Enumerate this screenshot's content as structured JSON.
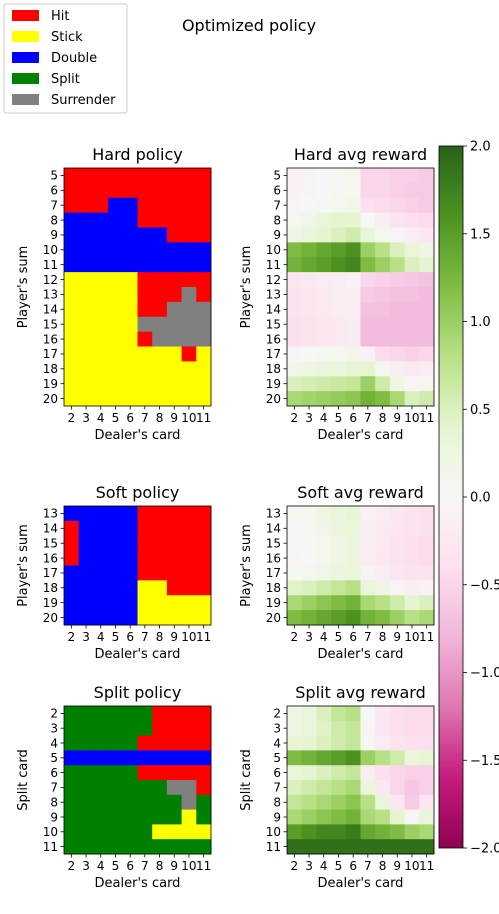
{
  "page": {
    "title": "Optimized policy"
  },
  "legend": {
    "position": "top-left",
    "entries": [
      {
        "label": "Hit",
        "color": "#ff0000"
      },
      {
        "label": "Stick",
        "color": "#ffff00"
      },
      {
        "label": "Double",
        "color": "#0000ff"
      },
      {
        "label": "Split",
        "color": "#008000"
      },
      {
        "label": "Surrender",
        "color": "#808080"
      }
    ]
  },
  "chart_data": [
    {
      "type": "heatmap",
      "name": "hard-policy",
      "title": "Hard policy",
      "xlabel": "Dealer's card",
      "ylabel": "Player's sum",
      "x_ticks": [
        "2",
        "3",
        "4",
        "5",
        "6",
        "7",
        "8",
        "9",
        "10",
        "11"
      ],
      "y_ticks": [
        "5",
        "6",
        "7",
        "8",
        "9",
        "10",
        "11",
        "12",
        "13",
        "14",
        "15",
        "16",
        "17",
        "18",
        "19",
        "20"
      ],
      "value_kind": "action",
      "action_colors": {
        "H": "#ff0000",
        "S": "#ffff00",
        "D": "#0000ff",
        "P": "#008000",
        "R": "#808080"
      },
      "action_names": {
        "H": "Hit",
        "S": "Stick",
        "D": "Double",
        "P": "Split",
        "R": "Surrender"
      },
      "rows": [
        [
          "H",
          "H",
          "H",
          "H",
          "H",
          "H",
          "H",
          "H",
          "H",
          "H"
        ],
        [
          "H",
          "H",
          "H",
          "H",
          "H",
          "H",
          "H",
          "H",
          "H",
          "H"
        ],
        [
          "H",
          "H",
          "H",
          "D",
          "D",
          "H",
          "H",
          "H",
          "H",
          "H"
        ],
        [
          "D",
          "D",
          "D",
          "D",
          "D",
          "H",
          "H",
          "H",
          "H",
          "H"
        ],
        [
          "D",
          "D",
          "D",
          "D",
          "D",
          "D",
          "D",
          "H",
          "H",
          "H"
        ],
        [
          "D",
          "D",
          "D",
          "D",
          "D",
          "D",
          "D",
          "D",
          "D",
          "D"
        ],
        [
          "D",
          "D",
          "D",
          "D",
          "D",
          "D",
          "D",
          "D",
          "D",
          "D"
        ],
        [
          "S",
          "S",
          "S",
          "S",
          "S",
          "H",
          "H",
          "H",
          "H",
          "H"
        ],
        [
          "S",
          "S",
          "S",
          "S",
          "S",
          "H",
          "H",
          "H",
          "R",
          "H"
        ],
        [
          "S",
          "S",
          "S",
          "S",
          "S",
          "H",
          "H",
          "R",
          "R",
          "R"
        ],
        [
          "S",
          "S",
          "S",
          "S",
          "S",
          "R",
          "R",
          "R",
          "R",
          "R"
        ],
        [
          "S",
          "S",
          "S",
          "S",
          "S",
          "H",
          "R",
          "R",
          "R",
          "R"
        ],
        [
          "S",
          "S",
          "S",
          "S",
          "S",
          "S",
          "S",
          "S",
          "H",
          "S"
        ],
        [
          "S",
          "S",
          "S",
          "S",
          "S",
          "S",
          "S",
          "S",
          "S",
          "S"
        ],
        [
          "S",
          "S",
          "S",
          "S",
          "S",
          "S",
          "S",
          "S",
          "S",
          "S"
        ],
        [
          "S",
          "S",
          "S",
          "S",
          "S",
          "S",
          "S",
          "S",
          "S",
          "S"
        ]
      ]
    },
    {
      "type": "heatmap",
      "name": "hard-avg-reward",
      "title": "Hard avg reward",
      "xlabel": "Dealer's card",
      "ylabel": "Player's sum",
      "x_ticks": [
        "2",
        "3",
        "4",
        "5",
        "6",
        "7",
        "8",
        "9",
        "10",
        "11"
      ],
      "y_ticks": [
        "5",
        "6",
        "7",
        "8",
        "9",
        "10",
        "11",
        "12",
        "13",
        "14",
        "15",
        "16",
        "17",
        "18",
        "19",
        "20"
      ],
      "value_kind": "reward",
      "vmin": -2.0,
      "vmax": 2.0,
      "rows": [
        [
          -0.1,
          -0.05,
          0.0,
          0.05,
          0.1,
          -0.5,
          -0.5,
          -0.55,
          -0.55,
          -0.6
        ],
        [
          -0.1,
          -0.05,
          0.0,
          0.05,
          0.1,
          -0.5,
          -0.5,
          -0.55,
          -0.6,
          -0.6
        ],
        [
          -0.05,
          0.0,
          0.05,
          0.1,
          0.15,
          -0.4,
          -0.45,
          -0.5,
          -0.55,
          -0.6
        ],
        [
          0.1,
          0.15,
          0.3,
          0.4,
          0.4,
          0.0,
          -0.2,
          -0.35,
          -0.4,
          -0.45
        ],
        [
          0.2,
          0.3,
          0.4,
          0.5,
          0.6,
          0.3,
          0.1,
          -0.05,
          -0.2,
          -0.3
        ],
        [
          1.2,
          1.3,
          1.4,
          1.5,
          1.6,
          1.0,
          0.8,
          0.5,
          0.3,
          0.2
        ],
        [
          1.3,
          1.4,
          1.5,
          1.6,
          1.7,
          1.2,
          1.0,
          0.8,
          0.5,
          0.4
        ],
        [
          -0.3,
          -0.25,
          -0.2,
          -0.15,
          -0.1,
          -0.5,
          -0.55,
          -0.6,
          -0.65,
          -0.7
        ],
        [
          -0.35,
          -0.3,
          -0.25,
          -0.2,
          -0.15,
          -0.6,
          -0.65,
          -0.7,
          -0.7,
          -0.75
        ],
        [
          -0.35,
          -0.3,
          -0.25,
          -0.2,
          -0.15,
          -0.7,
          -0.7,
          -0.75,
          -0.75,
          -0.75
        ],
        [
          -0.4,
          -0.35,
          -0.3,
          -0.25,
          -0.2,
          -0.75,
          -0.75,
          -0.75,
          -0.75,
          -0.75
        ],
        [
          -0.4,
          -0.35,
          -0.3,
          -0.25,
          -0.2,
          -0.75,
          -0.75,
          -0.75,
          -0.75,
          -0.75
        ],
        [
          -0.05,
          0.0,
          0.05,
          0.1,
          0.15,
          -0.1,
          -0.45,
          -0.5,
          -0.55,
          -0.5
        ],
        [
          0.15,
          0.2,
          0.25,
          0.3,
          0.35,
          0.4,
          0.1,
          -0.15,
          -0.25,
          -0.2
        ],
        [
          0.5,
          0.55,
          0.6,
          0.65,
          0.7,
          1.0,
          0.6,
          0.2,
          -0.05,
          0.1
        ],
        [
          0.9,
          0.95,
          1.0,
          1.05,
          1.1,
          1.3,
          1.2,
          0.9,
          0.5,
          0.6
        ]
      ]
    },
    {
      "type": "heatmap",
      "name": "soft-policy",
      "title": "Soft policy",
      "xlabel": "Dealer's card",
      "ylabel": "Player's sum",
      "x_ticks": [
        "2",
        "3",
        "4",
        "5",
        "6",
        "7",
        "8",
        "9",
        "10",
        "11"
      ],
      "y_ticks": [
        "13",
        "14",
        "15",
        "16",
        "17",
        "18",
        "19",
        "20"
      ],
      "value_kind": "action",
      "action_colors": {
        "H": "#ff0000",
        "S": "#ffff00",
        "D": "#0000ff",
        "P": "#008000",
        "R": "#808080"
      },
      "action_names": {
        "H": "Hit",
        "S": "Stick",
        "D": "Double",
        "P": "Split",
        "R": "Surrender"
      },
      "rows": [
        [
          "D",
          "D",
          "D",
          "D",
          "D",
          "H",
          "H",
          "H",
          "H",
          "H"
        ],
        [
          "H",
          "D",
          "D",
          "D",
          "D",
          "H",
          "H",
          "H",
          "H",
          "H"
        ],
        [
          "H",
          "D",
          "D",
          "D",
          "D",
          "H",
          "H",
          "H",
          "H",
          "H"
        ],
        [
          "H",
          "D",
          "D",
          "D",
          "D",
          "H",
          "H",
          "H",
          "H",
          "H"
        ],
        [
          "D",
          "D",
          "D",
          "D",
          "D",
          "H",
          "H",
          "H",
          "H",
          "H"
        ],
        [
          "D",
          "D",
          "D",
          "D",
          "D",
          "S",
          "S",
          "H",
          "H",
          "H"
        ],
        [
          "D",
          "D",
          "D",
          "D",
          "D",
          "S",
          "S",
          "S",
          "S",
          "S"
        ],
        [
          "D",
          "D",
          "D",
          "D",
          "D",
          "S",
          "S",
          "S",
          "S",
          "S"
        ]
      ]
    },
    {
      "type": "heatmap",
      "name": "soft-avg-reward",
      "title": "Soft avg reward",
      "xlabel": "Dealer's card",
      "ylabel": "Player's sum",
      "x_ticks": [
        "2",
        "3",
        "4",
        "5",
        "6",
        "7",
        "8",
        "9",
        "10",
        "11"
      ],
      "y_ticks": [
        "13",
        "14",
        "15",
        "16",
        "17",
        "18",
        "19",
        "20"
      ],
      "value_kind": "reward",
      "vmin": -2.0,
      "vmax": 2.0,
      "rows": [
        [
          0.05,
          0.1,
          0.2,
          0.3,
          0.35,
          -0.1,
          -0.2,
          -0.3,
          -0.35,
          -0.4
        ],
        [
          0.0,
          0.05,
          0.15,
          0.25,
          0.3,
          -0.15,
          -0.25,
          -0.3,
          -0.35,
          -0.4
        ],
        [
          0.0,
          0.05,
          0.1,
          0.2,
          0.25,
          -0.15,
          -0.25,
          -0.35,
          -0.4,
          -0.45
        ],
        [
          -0.05,
          0.0,
          0.1,
          0.2,
          0.25,
          -0.2,
          -0.3,
          -0.35,
          -0.4,
          -0.45
        ],
        [
          0.05,
          0.1,
          0.15,
          0.25,
          0.3,
          -0.05,
          -0.2,
          -0.3,
          -0.35,
          -0.35
        ],
        [
          0.45,
          0.5,
          0.6,
          0.7,
          0.8,
          0.3,
          0.2,
          -0.05,
          -0.15,
          -0.1
        ],
        [
          0.9,
          1.0,
          1.1,
          1.2,
          1.3,
          0.9,
          0.8,
          0.6,
          0.4,
          0.5
        ],
        [
          1.2,
          1.3,
          1.4,
          1.5,
          1.6,
          1.3,
          1.2,
          1.0,
          0.8,
          0.9
        ]
      ]
    },
    {
      "type": "heatmap",
      "name": "split-policy",
      "title": "Split policy",
      "xlabel": "Dealer's card",
      "ylabel": "Split card",
      "x_ticks": [
        "2",
        "3",
        "4",
        "5",
        "6",
        "7",
        "8",
        "9",
        "10",
        "11"
      ],
      "y_ticks": [
        "2",
        "3",
        "4",
        "5",
        "6",
        "7",
        "8",
        "9",
        "10",
        "11"
      ],
      "value_kind": "action",
      "action_colors": {
        "H": "#ff0000",
        "S": "#ffff00",
        "D": "#0000ff",
        "P": "#008000",
        "R": "#808080"
      },
      "action_names": {
        "H": "Hit",
        "S": "Stick",
        "D": "Double",
        "P": "Split",
        "R": "Surrender"
      },
      "rows": [
        [
          "P",
          "P",
          "P",
          "P",
          "P",
          "P",
          "H",
          "H",
          "H",
          "H"
        ],
        [
          "P",
          "P",
          "P",
          "P",
          "P",
          "P",
          "H",
          "H",
          "H",
          "H"
        ],
        [
          "P",
          "P",
          "P",
          "P",
          "P",
          "H",
          "H",
          "H",
          "H",
          "H"
        ],
        [
          "D",
          "D",
          "D",
          "D",
          "D",
          "D",
          "D",
          "D",
          "D",
          "D"
        ],
        [
          "P",
          "P",
          "P",
          "P",
          "P",
          "H",
          "H",
          "H",
          "H",
          "H"
        ],
        [
          "P",
          "P",
          "P",
          "P",
          "P",
          "P",
          "P",
          "R",
          "R",
          "H"
        ],
        [
          "P",
          "P",
          "P",
          "P",
          "P",
          "P",
          "P",
          "P",
          "R",
          "P"
        ],
        [
          "P",
          "P",
          "P",
          "P",
          "P",
          "P",
          "P",
          "P",
          "S",
          "P"
        ],
        [
          "P",
          "P",
          "P",
          "P",
          "P",
          "P",
          "S",
          "S",
          "S",
          "S"
        ],
        [
          "P",
          "P",
          "P",
          "P",
          "P",
          "P",
          "P",
          "P",
          "P",
          "P"
        ]
      ]
    },
    {
      "type": "heatmap",
      "name": "split-avg-reward",
      "title": "Split avg reward",
      "xlabel": "Dealer's card",
      "ylabel": "Split card",
      "x_ticks": [
        "2",
        "3",
        "4",
        "5",
        "6",
        "7",
        "8",
        "9",
        "10",
        "11"
      ],
      "y_ticks": [
        "2",
        "3",
        "4",
        "5",
        "6",
        "7",
        "8",
        "9",
        "10",
        "11"
      ],
      "value_kind": "reward",
      "vmin": -2.0,
      "vmax": 2.0,
      "rows": [
        [
          0.2,
          0.3,
          0.5,
          0.7,
          0.8,
          0.0,
          -0.3,
          -0.4,
          -0.45,
          -0.45
        ],
        [
          0.2,
          0.3,
          0.45,
          0.6,
          0.7,
          -0.05,
          -0.3,
          -0.4,
          -0.45,
          -0.45
        ],
        [
          0.35,
          0.4,
          0.5,
          0.6,
          0.7,
          0.05,
          -0.2,
          -0.35,
          -0.4,
          -0.4
        ],
        [
          1.2,
          1.3,
          1.4,
          1.5,
          1.6,
          1.0,
          0.8,
          0.6,
          0.3,
          0.35
        ],
        [
          0.3,
          0.4,
          0.5,
          0.6,
          0.7,
          -0.2,
          -0.4,
          -0.5,
          -0.55,
          -0.55
        ],
        [
          0.5,
          0.6,
          0.7,
          0.8,
          0.9,
          0.3,
          -0.3,
          -0.5,
          -0.65,
          -0.55
        ],
        [
          0.7,
          0.8,
          0.9,
          1.0,
          1.1,
          0.8,
          0.3,
          -0.3,
          -0.6,
          -0.3
        ],
        [
          0.9,
          1.0,
          1.1,
          1.2,
          1.3,
          0.9,
          0.8,
          0.4,
          -0.05,
          0.3
        ],
        [
          1.5,
          1.6,
          1.7,
          1.7,
          1.8,
          1.4,
          1.3,
          1.2,
          1.0,
          0.9
        ],
        [
          1.9,
          1.9,
          1.9,
          1.9,
          1.9,
          1.9,
          1.9,
          1.9,
          1.9,
          1.9
        ]
      ]
    }
  ],
  "colorbar": {
    "vmin": -2.0,
    "vmax": 2.0,
    "ticks": [
      "2.0",
      "1.5",
      "1.0",
      "0.5",
      "0.0",
      "−0.5",
      "−1.0",
      "−1.5",
      "−2.0"
    ],
    "tick_values": [
      2.0,
      1.5,
      1.0,
      0.5,
      0.0,
      -0.5,
      -1.0,
      -1.5,
      -2.0
    ],
    "colormap": "PiYG",
    "stops": [
      "#8e0152",
      "#c51b7d",
      "#de77ae",
      "#f1b6da",
      "#fde0ef",
      "#f7f7f7",
      "#e6f5d0",
      "#b8e186",
      "#7fbc41",
      "#4d9221",
      "#276419"
    ]
  }
}
